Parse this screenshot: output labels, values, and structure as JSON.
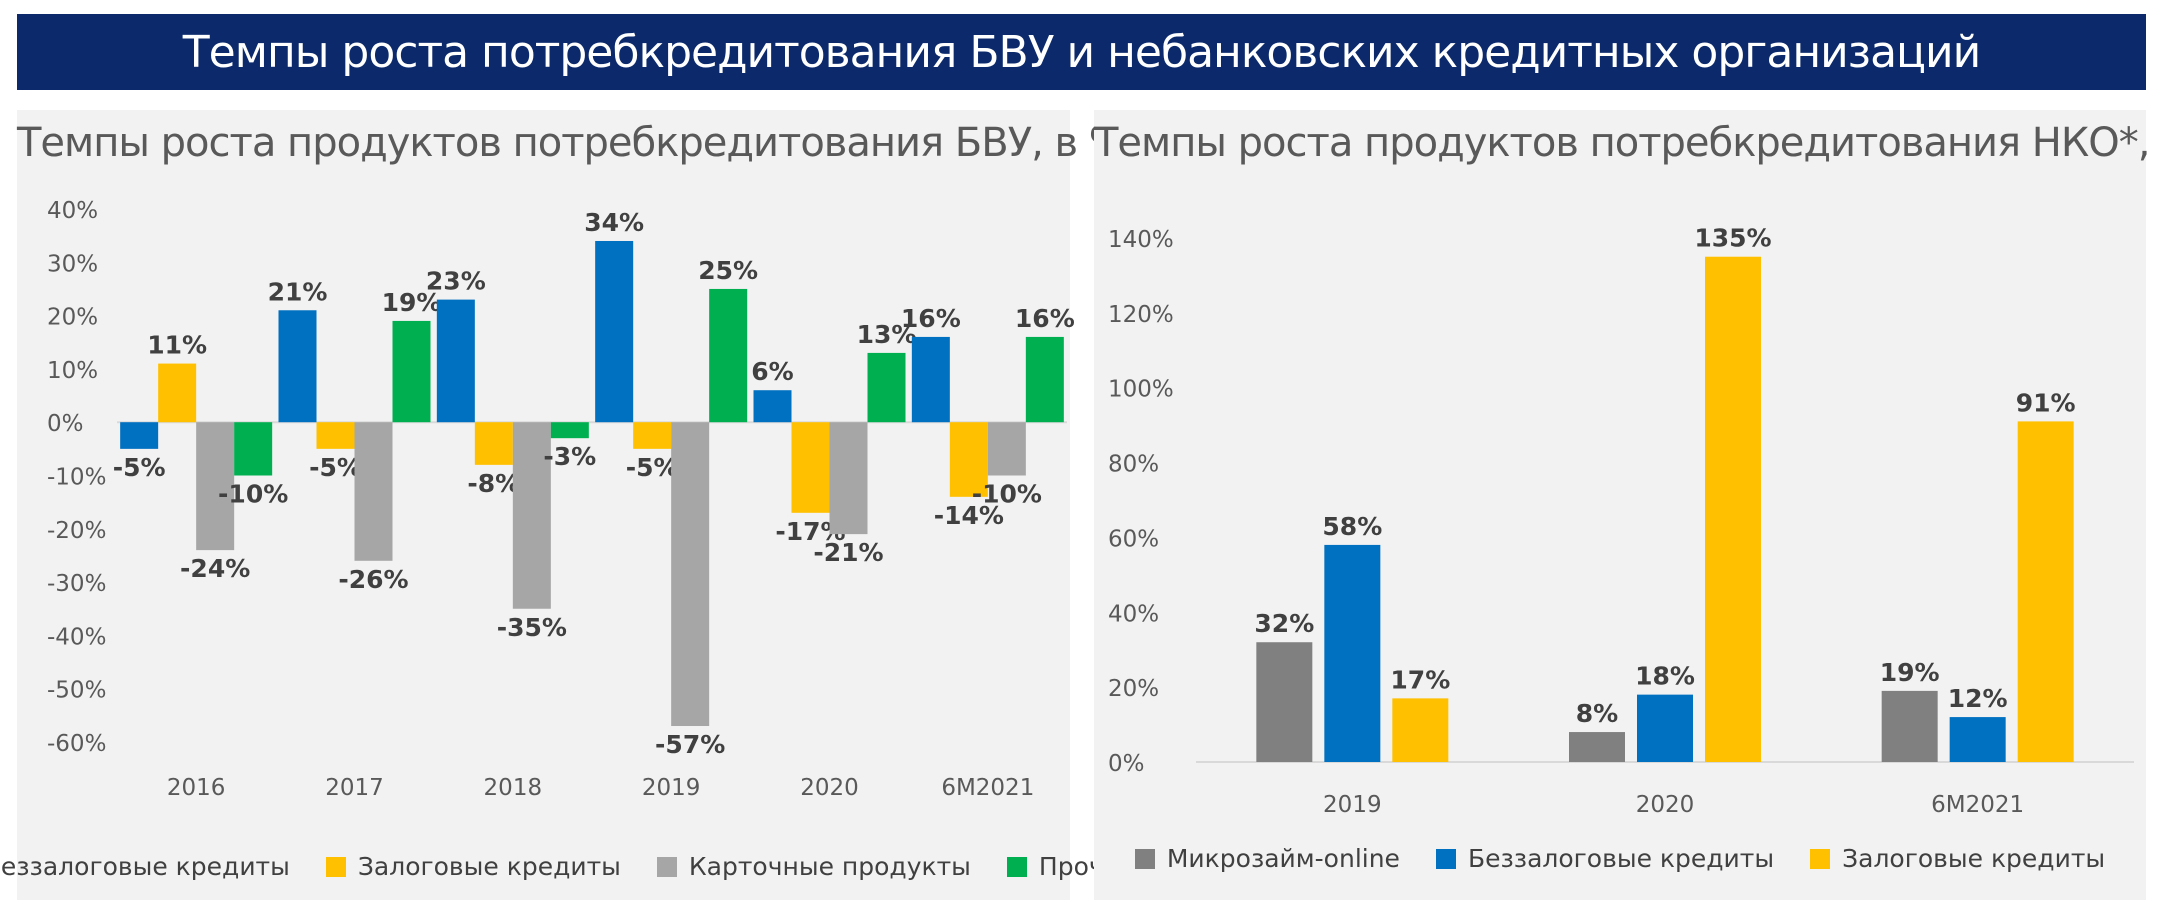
{
  "banner": {
    "title": "Темпы роста потребкредитования БВУ и небанковских кредитных организаций"
  },
  "colors": {
    "banner": "#0c2a6b",
    "blue": "#0070c0",
    "yellow": "#ffc000",
    "gray": "#a6a6a6",
    "darkgray": "#808080",
    "green": "#00b050"
  },
  "chart_data": [
    {
      "type": "bar",
      "title": "Темпы роста продуктов потребкредитования БВУ, в %",
      "categories": [
        "2016",
        "2017",
        "2018",
        "2019",
        "2020",
        "6M2021"
      ],
      "ylim": [
        -60,
        40
      ],
      "yticks": [
        40,
        30,
        20,
        10,
        0,
        -10,
        -20,
        -30,
        -40,
        -50,
        -60
      ],
      "ytick_labels": [
        "40%",
        "30%",
        "20%",
        "10%",
        "0%",
        "-10%",
        "-20%",
        "-30%",
        "-40%",
        "-50%",
        "-60%"
      ],
      "legend_position": "bottom",
      "series": [
        {
          "name": "Беззалоговые кредиты",
          "color": "#0070c0",
          "values": [
            -5,
            21,
            23,
            34,
            6,
            16
          ],
          "labels": [
            "-5%",
            "21%",
            "23%",
            "34%",
            "6%",
            "16%"
          ]
        },
        {
          "name": "Залоговые кредиты",
          "color": "#ffc000",
          "values": [
            11,
            -5,
            -8,
            -5,
            -17,
            -14
          ],
          "labels": [
            "11%",
            "-5%",
            "-8%",
            "-5%",
            "-17%",
            "-14%"
          ]
        },
        {
          "name": "Карточные продукты",
          "color": "#a6a6a6",
          "values": [
            -24,
            -26,
            -35,
            -57,
            -21,
            -10
          ],
          "labels": [
            "-24%",
            "-26%",
            "-35%",
            "-57%",
            "-21%",
            "-10%"
          ]
        },
        {
          "name": "Прочие",
          "color": "#00b050",
          "values": [
            -10,
            19,
            -3,
            25,
            13,
            16
          ],
          "labels": [
            "-10%",
            "19%",
            "-3%",
            "25%",
            "13%",
            "16%"
          ]
        }
      ]
    },
    {
      "type": "bar",
      "title": "Темпы роста продуктов потребкредитования НКО*, в %",
      "categories": [
        "2019",
        "2020",
        "6M2021"
      ],
      "ylim": [
        0,
        140
      ],
      "yticks": [
        140,
        120,
        100,
        80,
        60,
        40,
        20,
        0
      ],
      "ytick_labels": [
        "140%",
        "120%",
        "100%",
        "80%",
        "60%",
        "40%",
        "20%",
        "0%"
      ],
      "legend_position": "bottom",
      "series": [
        {
          "name": "Микрозайм-online",
          "color": "#808080",
          "values": [
            32,
            8,
            19
          ],
          "labels": [
            "32%",
            "8%",
            "19%"
          ]
        },
        {
          "name": "Беззалоговые кредиты",
          "color": "#0070c0",
          "values": [
            58,
            18,
            12
          ],
          "labels": [
            "58%",
            "18%",
            "12%"
          ]
        },
        {
          "name": "Залоговые кредиты",
          "color": "#ffc000",
          "values": [
            17,
            135,
            91
          ],
          "labels": [
            "17%",
            "135%",
            "91%"
          ]
        }
      ]
    }
  ]
}
